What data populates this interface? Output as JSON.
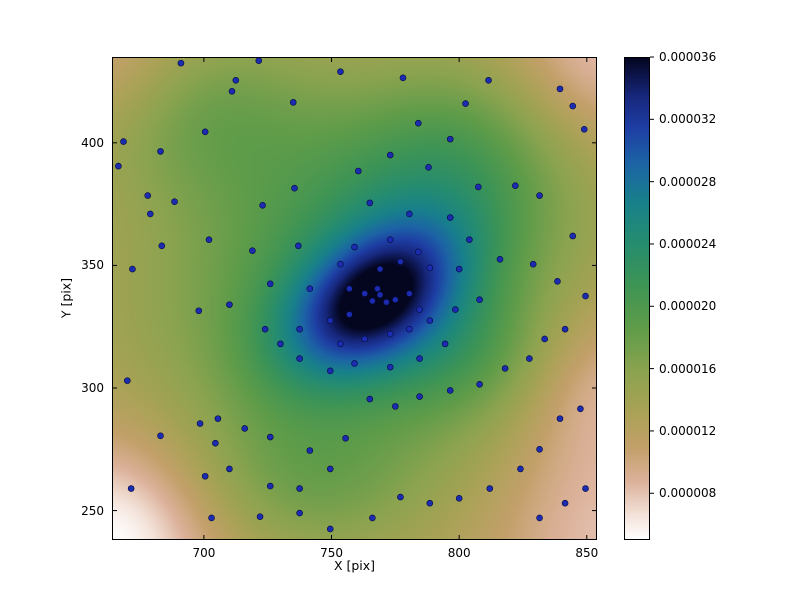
{
  "figure": {
    "background": "#ffffff",
    "border_color": "#000000"
  },
  "chart_data": {
    "type": "heatmap",
    "overlay": "scatter",
    "title": "",
    "xlabel": "X [pix]",
    "ylabel": "Y [pix]",
    "xlim": [
      664,
      854
    ],
    "ylim": [
      238,
      435
    ],
    "grid": false,
    "x_ticks": [
      700,
      750,
      800,
      850
    ],
    "y_ticks": [
      250,
      300,
      350,
      400
    ],
    "colorbar": {
      "vmin": 5e-06,
      "vmax": 3.6e-05,
      "ticks": [
        8e-06,
        1.2e-05,
        1.6e-05,
        2e-05,
        2.4e-05,
        2.8e-05,
        3.2e-05,
        3.6e-05
      ],
      "position": "right"
    },
    "colormap_name": "gist_earth_r",
    "colormap_stops": [
      [
        0.0,
        "#ffffff"
      ],
      [
        0.05,
        "#f4e3da"
      ],
      [
        0.12,
        "#dcb29b"
      ],
      [
        0.19,
        "#c3a06a"
      ],
      [
        0.27,
        "#a8a255"
      ],
      [
        0.35,
        "#8ba34f"
      ],
      [
        0.44,
        "#5f9c49"
      ],
      [
        0.53,
        "#3d9455"
      ],
      [
        0.62,
        "#258c71"
      ],
      [
        0.7,
        "#18808b"
      ],
      [
        0.78,
        "#1c64a5"
      ],
      [
        0.855,
        "#1e3ea4"
      ],
      [
        0.92,
        "#17277c"
      ],
      [
        0.965,
        "#0c1448"
      ],
      [
        1.0,
        "#04061f"
      ]
    ],
    "density_model": {
      "base": 1.2e-05,
      "blobs": [
        {
          "cx": 766,
          "cy": 336,
          "s1": 27,
          "s2": 17,
          "theta": 38,
          "amp": 1.65e-05
        },
        {
          "cx": 762,
          "cy": 340,
          "s1": 58,
          "s2": 50,
          "theta": 20,
          "amp": 9e-06
        },
        {
          "cx": 700,
          "cy": 412,
          "s1": 32,
          "s2": 26,
          "theta": 0,
          "amp": 4.5e-06
        },
        {
          "cx": 740,
          "cy": 260,
          "s1": 34,
          "s2": 22,
          "theta": 0,
          "amp": 3.5e-06
        },
        {
          "cx": 797,
          "cy": 392,
          "s1": 36,
          "s2": 28,
          "theta": 30,
          "amp": 5e-06
        },
        {
          "cx": 802,
          "cy": 314,
          "s1": 26,
          "s2": 20,
          "theta": 0,
          "amp": 3.5e-06
        },
        {
          "cx": 664,
          "cy": 238,
          "s1": 30,
          "s2": 30,
          "theta": 0,
          "amp": -7.5e-06
        },
        {
          "cx": 854,
          "cy": 238,
          "s1": 30,
          "s2": 30,
          "theta": 0,
          "amp": -3.8e-06
        },
        {
          "cx": 854,
          "cy": 302,
          "s1": 26,
          "s2": 26,
          "theta": 0,
          "amp": -4.2e-06
        },
        {
          "cx": 854,
          "cy": 435,
          "s1": 27,
          "s2": 27,
          "theta": 0,
          "amp": -4.8e-06
        },
        {
          "cx": 664,
          "cy": 435,
          "s1": 22,
          "s2": 22,
          "theta": 0,
          "amp": -2.8e-06
        }
      ]
    },
    "scatter": {
      "marker_color": "#1c2cb0",
      "marker_edge_color": "#050a3c",
      "marker_radius_px": 3,
      "points": [
        [
          691,
          432.5
        ],
        [
          712.5,
          425.5
        ],
        [
          721.5,
          433.5
        ],
        [
          711,
          421
        ],
        [
          735,
          416.5
        ],
        [
          753.5,
          429
        ],
        [
          778,
          426.5
        ],
        [
          802.5,
          416
        ],
        [
          811.5,
          425.5
        ],
        [
          839.5,
          422
        ],
        [
          844.5,
          415
        ],
        [
          849,
          405.5
        ],
        [
          668.5,
          400.5
        ],
        [
          666.5,
          390.5
        ],
        [
          683,
          396.5
        ],
        [
          700.5,
          404.5
        ],
        [
          688.5,
          376
        ],
        [
          678,
          378.5
        ],
        [
          679,
          371
        ],
        [
          683.5,
          358
        ],
        [
          672,
          348.5
        ],
        [
          702,
          360.5
        ],
        [
          723,
          374.5
        ],
        [
          735.5,
          381.5
        ],
        [
          719,
          356
        ],
        [
          737,
          358
        ],
        [
          726,
          342.5
        ],
        [
          710,
          334
        ],
        [
          698,
          331.5
        ],
        [
          741.5,
          340.5
        ],
        [
          784,
          408
        ],
        [
          796.5,
          401.5
        ],
        [
          807.5,
          382
        ],
        [
          822,
          382.5
        ],
        [
          831.5,
          378.5
        ],
        [
          844.5,
          362
        ],
        [
          788,
          390
        ],
        [
          773,
          395
        ],
        [
          760.5,
          388.5
        ],
        [
          765,
          375.5
        ],
        [
          780.5,
          371
        ],
        [
          796.5,
          369.5
        ],
        [
          804,
          360.5
        ],
        [
          784,
          355.5
        ],
        [
          773,
          360.5
        ],
        [
          759,
          357.5
        ],
        [
          753.5,
          350.5
        ],
        [
          769,
          348.5
        ],
        [
          777,
          351.5
        ],
        [
          788.5,
          349
        ],
        [
          800,
          348.5
        ],
        [
          816,
          352.5
        ],
        [
          829,
          350.5
        ],
        [
          838.5,
          343.5
        ],
        [
          849.5,
          337.5
        ],
        [
          757,
          340.5
        ],
        [
          763,
          338.5
        ],
        [
          766,
          335.5
        ],
        [
          769,
          338
        ],
        [
          768,
          340.5
        ],
        [
          771.5,
          335
        ],
        [
          775,
          336
        ],
        [
          780.5,
          338.5
        ],
        [
          784.5,
          332
        ],
        [
          757,
          330
        ],
        [
          749.5,
          327.5
        ],
        [
          737.5,
          324
        ],
        [
          753.5,
          318
        ],
        [
          763,
          320
        ],
        [
          773,
          322
        ],
        [
          780.5,
          324
        ],
        [
          788.5,
          327.5
        ],
        [
          798.5,
          332
        ],
        [
          808,
          336
        ],
        [
          759,
          310
        ],
        [
          749.5,
          307
        ],
        [
          773,
          308.5
        ],
        [
          784.5,
          312
        ],
        [
          794.5,
          318
        ],
        [
          737.5,
          312
        ],
        [
          730,
          318
        ],
        [
          724,
          324
        ],
        [
          670,
          303
        ],
        [
          683,
          280.5
        ],
        [
          671.5,
          259
        ],
        [
          698.5,
          285.5
        ],
        [
          705.5,
          287.5
        ],
        [
          704.5,
          277.5
        ],
        [
          716,
          283.5
        ],
        [
          726,
          280
        ],
        [
          710,
          267
        ],
        [
          700.5,
          264
        ],
        [
          726,
          260
        ],
        [
          737.5,
          259
        ],
        [
          749.5,
          267
        ],
        [
          741.5,
          274.5
        ],
        [
          755.5,
          279.5
        ],
        [
          703,
          247
        ],
        [
          722,
          247.5
        ],
        [
          749.5,
          242.5
        ],
        [
          766,
          247
        ],
        [
          737.5,
          249
        ],
        [
          765,
          295.5
        ],
        [
          775,
          292.5
        ],
        [
          784.5,
          296.5
        ],
        [
          796.5,
          299
        ],
        [
          808,
          301.5
        ],
        [
          818,
          308
        ],
        [
          827.5,
          312
        ],
        [
          833.5,
          320
        ],
        [
          841.5,
          324
        ],
        [
          847.5,
          291.5
        ],
        [
          839.5,
          287.5
        ],
        [
          831.5,
          275
        ],
        [
          824,
          267
        ],
        [
          812,
          259
        ],
        [
          800,
          255
        ],
        [
          788.5,
          253
        ],
        [
          777,
          255.5
        ],
        [
          831.5,
          247
        ],
        [
          841.5,
          253
        ],
        [
          849.5,
          259
        ]
      ]
    }
  }
}
